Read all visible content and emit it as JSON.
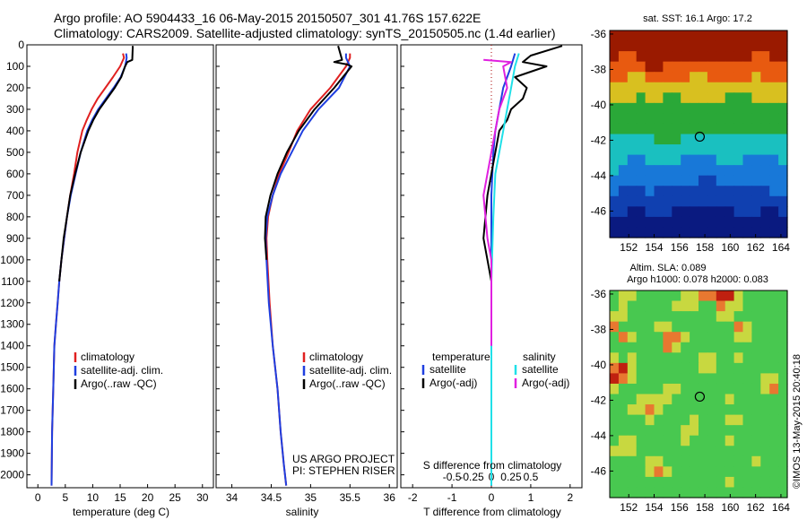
{
  "header": {
    "line1": "Argo profile: AO 5904433_16 06-May-2015 20150507_301 41.76S 157.622E",
    "line2": "Climatology: CARS2009. Satellite-adjusted climatology: synTS_20150505.nc (1.4d earlier)"
  },
  "colors": {
    "red": "#e02020",
    "blue": "#1f3fe0",
    "black": "#000000",
    "cyan": "#20e0e8",
    "magenta": "#e020e0"
  },
  "chart_data": [
    {
      "type": "line",
      "id": "temperature",
      "xlabel": "temperature (deg C)",
      "ylabel": "",
      "xlim": [
        -2,
        32
      ],
      "ylim": [
        2060,
        0
      ],
      "xticks": [
        0,
        5,
        10,
        15,
        20,
        25,
        30
      ],
      "xtick_labels": [
        "0",
        "5",
        "10",
        "15",
        "20",
        "25",
        "30"
      ],
      "yticks": [
        0,
        100,
        200,
        300,
        400,
        500,
        600,
        700,
        800,
        900,
        1000,
        1100,
        1200,
        1300,
        1400,
        1500,
        1600,
        1700,
        1800,
        1900,
        2000
      ],
      "ytick_labels": [
        "0",
        "100",
        "200",
        "300",
        "400",
        "500",
        "600",
        "700",
        "800",
        "900",
        "1000",
        "1100",
        "1200",
        "1300",
        "1400",
        "1500",
        "1600",
        "1700",
        "1800",
        "1900",
        "2000"
      ],
      "legend": [
        "climatology",
        "satellite-adj. clim.",
        "Argo(..raw -QC)"
      ],
      "series": [
        {
          "name": "climatology",
          "color": "red",
          "x": [
            15.5,
            15.7,
            15.0,
            13.7,
            12.3,
            10.9,
            9.8,
            8.9,
            8.1,
            7.2,
            6.6,
            5.9,
            5.3,
            4.8,
            4.3,
            3.9,
            3.6,
            3.3,
            3.0,
            2.8,
            2.6,
            2.5
          ],
          "y": [
            40,
            60,
            100,
            150,
            200,
            250,
            300,
            350,
            400,
            500,
            600,
            700,
            800,
            900,
            1000,
            1100,
            1200,
            1300,
            1400,
            1600,
            1800,
            2050
          ]
        },
        {
          "name": "satellite-adj. clim.",
          "color": "blue",
          "x": [
            16.1,
            16.2,
            15.9,
            15.1,
            13.8,
            12.4,
            11.0,
            9.9,
            9.0,
            7.8,
            6.9,
            6.0,
            5.3,
            4.8,
            4.3,
            3.9,
            3.6,
            3.3,
            3.0,
            2.8,
            2.6,
            2.5
          ],
          "y": [
            40,
            60,
            100,
            150,
            200,
            250,
            300,
            350,
            400,
            500,
            600,
            700,
            800,
            900,
            1000,
            1100,
            1200,
            1300,
            1400,
            1600,
            1800,
            2050
          ]
        },
        {
          "name": "Argo(..raw -QC)",
          "color": "black",
          "x": [
            17.3,
            17.2,
            16.3,
            15.9,
            15.2,
            14.0,
            12.6,
            11.2,
            10.1,
            9.2,
            7.8,
            6.8,
            5.9,
            5.3,
            4.7,
            4.3,
            3.9
          ],
          "y": [
            5,
            70,
            80,
            100,
            150,
            200,
            250,
            300,
            350,
            400,
            500,
            600,
            700,
            800,
            900,
            1000,
            1100
          ]
        }
      ]
    },
    {
      "type": "line",
      "id": "salinity",
      "xlabel": "salinity",
      "ylabel": "",
      "xlim": [
        33.8,
        36.1
      ],
      "ylim": [
        2060,
        0
      ],
      "xticks": [
        34,
        34.5,
        35,
        35.5,
        36
      ],
      "xtick_labels": [
        "34",
        "34.5",
        "35",
        "35.5",
        "36"
      ],
      "legend": [
        "climatology",
        "satellite-adj. clim.",
        "Argo(..raw -QC)"
      ],
      "annotation": [
        "US ARGO PROJECT",
        "PI: STEPHEN RISER"
      ],
      "series": [
        {
          "name": "climatology",
          "color": "red",
          "x": [
            35.5,
            35.5,
            35.45,
            35.25,
            35.0,
            34.83,
            34.72,
            34.6,
            34.52,
            34.46,
            34.44,
            34.45,
            34.48,
            34.52,
            34.58,
            34.62,
            34.66,
            34.69
          ],
          "y": [
            40,
            60,
            100,
            200,
            300,
            400,
            500,
            600,
            700,
            800,
            900,
            1000,
            1200,
            1400,
            1600,
            1800,
            1950,
            2050
          ]
        },
        {
          "name": "satellite-adj. clim.",
          "color": "blue",
          "x": [
            35.45,
            35.45,
            35.5,
            35.36,
            35.1,
            34.9,
            34.76,
            34.62,
            34.52,
            34.45,
            34.43,
            34.44,
            34.47,
            34.52,
            34.58,
            34.62,
            34.66,
            34.69
          ],
          "y": [
            40,
            60,
            100,
            200,
            300,
            400,
            500,
            600,
            700,
            800,
            900,
            1000,
            1200,
            1400,
            1600,
            1800,
            1950,
            2050
          ]
        },
        {
          "name": "Argo(..raw -QC)",
          "color": "black",
          "x": [
            35.35,
            35.4,
            35.3,
            35.45,
            35.52,
            35.3,
            35.05,
            34.85,
            34.7,
            34.58,
            34.49,
            34.43,
            34.42,
            34.44
          ],
          "y": [
            5,
            70,
            80,
            90,
            100,
            200,
            300,
            400,
            500,
            600,
            700,
            800,
            900,
            1000
          ]
        }
      ]
    },
    {
      "type": "line",
      "id": "difference",
      "xlabel": "T difference from climatology",
      "xlabel2": "S difference from climatology",
      "xlim": [
        -2.3,
        2.3
      ],
      "ylim": [
        2060,
        0
      ],
      "xticks": [
        -2,
        -1,
        0,
        1,
        2
      ],
      "xtick_labels": [
        "-2",
        "-1",
        "0",
        "1",
        "2"
      ],
      "sticks": [
        -1,
        -0.5,
        0,
        0.5,
        1
      ],
      "stick_labels": [
        "-0.5",
        "-0.25",
        "0",
        "0.25",
        "0.5"
      ],
      "legend_title_t": "temperature",
      "legend_title_s": "salinity",
      "legend": [
        "satellite",
        "Argo(-adj)",
        "satellite",
        "Argo(-adj)"
      ],
      "series": [
        {
          "name": "satellite",
          "group": "temperature",
          "color": "blue",
          "x": [
            0.6,
            0.5,
            0.3,
            0.2,
            0.1,
            0.05,
            0,
            0,
            0,
            0,
            0
          ],
          "y": [
            40,
            100,
            200,
            300,
            400,
            500,
            700,
            900,
            1200,
            1600,
            2050
          ]
        },
        {
          "name": "Argo(-adj)",
          "group": "temperature",
          "color": "black",
          "x": [
            1.8,
            1.0,
            0.8,
            1.4,
            0.6,
            0.9,
            0.8,
            0.5,
            0.4,
            0.2,
            0.1,
            0,
            -0.1,
            -0.2,
            -0.1,
            0,
            0,
            0
          ],
          "y": [
            5,
            50,
            80,
            100,
            150,
            200,
            250,
            300,
            350,
            400,
            500,
            600,
            700,
            900,
            1000,
            1100,
            1200,
            1400
          ]
        },
        {
          "name": "satellite",
          "group": "salinity",
          "color": "cyan",
          "x": [
            0.7,
            0.6,
            0.5,
            0.4,
            0.3,
            0.2,
            0.1,
            0.05,
            0,
            0,
            0
          ],
          "y": [
            40,
            100,
            200,
            300,
            400,
            500,
            600,
            800,
            1100,
            1500,
            2050
          ]
        },
        {
          "name": "Argo(-adj)",
          "group": "salinity",
          "color": "magenta",
          "x": [
            -0.2,
            0.5,
            0.3,
            0.4,
            0.2,
            0,
            -0.1,
            -0.2,
            -0.1,
            0,
            0,
            0
          ],
          "y": [
            70,
            80,
            100,
            200,
            300,
            500,
            600,
            700,
            900,
            1000,
            1200,
            1400
          ]
        }
      ]
    },
    {
      "type": "heatmap",
      "id": "sst-map",
      "title": "sat. SST: 16.1  Argo: 17.2",
      "xlim": [
        150.5,
        164.5
      ],
      "ylim": [
        -47.5,
        -35.8
      ],
      "xticks": [
        152,
        154,
        156,
        158,
        160,
        162,
        164
      ],
      "xtick_labels": [
        "152",
        "154",
        "156",
        "158",
        "160",
        "162",
        "164"
      ],
      "yticks": [
        -36,
        -38,
        -40,
        -42,
        -44,
        -46
      ],
      "ytick_labels": [
        "-36",
        "-38",
        "-40",
        "-42",
        "-44",
        "-46"
      ],
      "marker": {
        "lon": 157.6,
        "lat": -41.8
      },
      "rows": [
        "RRRRRRRRRRRRRRRRRRRR",
        "RRRRRRRRRRRRRRRRRRRR",
        "ROORRRRRRRRRRRRROORR",
        "OOOORROOOOOOOOOOOOOO",
        "OOYYOOOOOYYOOOOOYOOO",
        "YYYYYYYYYYYYYYYYYYYY",
        "YYYGYYGGYYYYYGGGYYYY",
        "GGGGGGGGGGGGGGGGGGGG",
        "GGGGGGGGGGGGGGGGGGGG",
        "GGGGGGGGGGGGGGGGGGGG",
        "CCCCCGGGCCCCCCCCCCCC",
        "CCCCCCCCCCCCCCCCCCCC",
        "CCLLCCCCLLLLCCCLLLLC",
        "CLLLLLLLLLLLLLLLLLLL",
        "LLLLLLLLLLBBLLLLLLLL",
        "LBBBLBBBBBBBBBBBBBLL",
        "BBBBBBBBBBBBBBBBBBBB",
        "BBDDBBBDDDDDDDBBBDDB",
        "DDDDDDDDDDDDDDDDDDDD",
        "DDDDDDDDDDDDDDDDDDDD"
      ]
    },
    {
      "type": "heatmap",
      "id": "sla-map",
      "title": "Altim. SLA: 0.089",
      "subtitle": "Argo h1000: 0.078 h2000: 0.083",
      "xlim": [
        150.5,
        164.5
      ],
      "ylim": [
        -47.5,
        -35.8
      ],
      "xticks": [
        152,
        154,
        156,
        158,
        160,
        162,
        164
      ],
      "xtick_labels": [
        "152",
        "154",
        "156",
        "158",
        "160",
        "162",
        "164"
      ],
      "yticks": [
        -36,
        -38,
        -40,
        -42,
        -44,
        -46
      ],
      "ytick_labels": [
        "-36",
        "-38",
        "-40",
        "-42",
        "-44",
        "-46"
      ],
      "marker": {
        "lon": 157.6,
        "lat": -41.8
      },
      "rows": [
        "GYYGGGGGYYOORRYGGGGG",
        "GYGGGGGYYYGGOYYGGGGG",
        "YYGGGGGGGGGGYYGGGGGG",
        "OGGGGYYGGGGGGGOYGGGG",
        "GOYGGGOOYGGGGGYYGGGG",
        "GGGGGGOYGGGGGGGGGGGG",
        "YGYGGGGGGGYYGGYGGGGG",
        "ORYGGGGGGGYYGGGGGGGG",
        "ROYGGGGGGGGGGGGGGYYG",
        "YGGGGGYYGGGGGGGGGYOG",
        "GGGYYYYGGGGGGYGGGGGG",
        "GGYYOYGGGGGGGGGGGGGG",
        "GGGGYGGGGYGGGYYGGGGG",
        "GGGGGGGGYYGGGGGGGGGG",
        "GYYGGGGGYGGGGYGGGGGG",
        "YYYGGGGGGGGGGGGGGGGG",
        "GGGGYYGGGGGGGGGGYGGG",
        "GGGGYOYGGGGGGGGGGGGG",
        "GGGGGGGGGGGGGYGGGGGG",
        "GGGGGGGGGGGGGGGGGGGG"
      ]
    }
  ],
  "palette": {
    "R": "#9a1a00",
    "O": "#e85a10",
    "Y": "#d8c020",
    "G": "#2aa838",
    "C": "#1ac0c0",
    "L": "#1878d8",
    "B": "#1040b0",
    "D": "#0a1a80"
  },
  "sla_palette": {
    "R": "#c02010",
    "O": "#e87830",
    "Y": "#c8d840",
    "G": "#48c850"
  },
  "credit": "©IMOS 13-May-2015 20:40:18"
}
